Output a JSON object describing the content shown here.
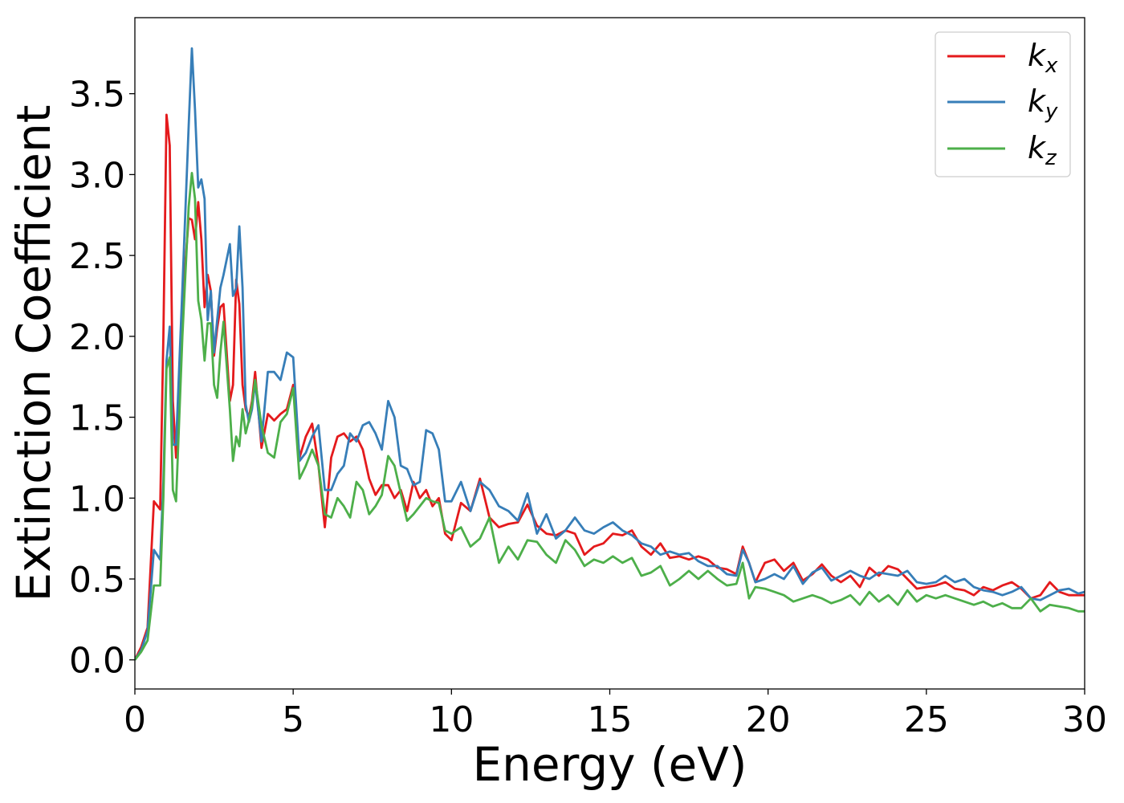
{
  "chart_data": {
    "type": "line",
    "title": "",
    "xlabel": "Energy (eV)",
    "ylabel": "Extinction Coefficient",
    "xlim": [
      0,
      30
    ],
    "ylim": [
      -0.18,
      3.97
    ],
    "xticks": [
      0,
      5,
      10,
      15,
      20,
      25,
      30
    ],
    "xtick_labels": [
      "0",
      "5",
      "10",
      "15",
      "20",
      "25",
      "30"
    ],
    "yticks": [
      0.0,
      0.5,
      1.0,
      1.5,
      2.0,
      2.5,
      3.0,
      3.5
    ],
    "ytick_labels": [
      "0.0",
      "0.5",
      "1.0",
      "1.5",
      "2.0",
      "2.5",
      "3.0",
      "3.5"
    ],
    "grid": false,
    "legend_position": "top-right",
    "x": [
      0,
      0.2,
      0.4,
      0.6,
      0.8,
      0.9,
      1.0,
      1.1,
      1.2,
      1.3,
      1.5,
      1.7,
      1.8,
      1.9,
      2.0,
      2.1,
      2.2,
      2.3,
      2.4,
      2.5,
      2.6,
      2.7,
      2.8,
      3.0,
      3.1,
      3.2,
      3.3,
      3.4,
      3.5,
      3.6,
      3.7,
      3.8,
      4.0,
      4.2,
      4.4,
      4.6,
      4.8,
      5.0,
      5.2,
      5.4,
      5.6,
      5.8,
      6.0,
      6.2,
      6.4,
      6.6,
      6.8,
      7.0,
      7.2,
      7.4,
      7.6,
      7.8,
      8.0,
      8.2,
      8.4,
      8.6,
      8.8,
      9.0,
      9.2,
      9.4,
      9.6,
      9.8,
      10.0,
      10.3,
      10.6,
      10.9,
      11.2,
      11.5,
      11.8,
      12.1,
      12.4,
      12.7,
      13.0,
      13.3,
      13.6,
      13.9,
      14.2,
      14.5,
      14.8,
      15.1,
      15.4,
      15.7,
      16.0,
      16.3,
      16.6,
      16.9,
      17.2,
      17.5,
      17.8,
      18.1,
      18.4,
      18.7,
      19.0,
      19.2,
      19.4,
      19.6,
      19.9,
      20.2,
      20.5,
      20.8,
      21.1,
      21.4,
      21.7,
      22.0,
      22.3,
      22.6,
      22.9,
      23.2,
      23.5,
      23.8,
      24.1,
      24.4,
      24.7,
      25.0,
      25.3,
      25.6,
      25.9,
      26.2,
      26.5,
      26.8,
      27.1,
      27.4,
      27.7,
      28.0,
      28.3,
      28.6,
      28.9,
      29.2,
      29.5,
      29.8,
      30.0
    ],
    "series": [
      {
        "name": "k_x",
        "color": "#e41a1c",
        "values": [
          0.0,
          0.08,
          0.2,
          0.98,
          0.93,
          2.0,
          3.37,
          3.18,
          1.6,
          1.25,
          2.2,
          2.73,
          2.72,
          2.6,
          2.83,
          2.6,
          2.18,
          2.38,
          2.28,
          1.88,
          2.05,
          2.18,
          2.2,
          1.6,
          1.7,
          2.35,
          2.2,
          1.7,
          1.55,
          1.5,
          1.6,
          1.78,
          1.31,
          1.52,
          1.48,
          1.52,
          1.55,
          1.7,
          1.25,
          1.38,
          1.46,
          1.2,
          0.82,
          1.25,
          1.38,
          1.4,
          1.35,
          1.38,
          1.3,
          1.12,
          1.02,
          1.08,
          1.08,
          1.0,
          1.05,
          0.92,
          1.1,
          1.0,
          1.05,
          0.95,
          1.0,
          0.78,
          0.74,
          0.97,
          0.92,
          1.12,
          0.88,
          0.82,
          0.84,
          0.85,
          0.96,
          0.83,
          0.78,
          0.77,
          0.8,
          0.78,
          0.65,
          0.7,
          0.72,
          0.78,
          0.77,
          0.8,
          0.7,
          0.65,
          0.72,
          0.63,
          0.64,
          0.62,
          0.64,
          0.62,
          0.57,
          0.56,
          0.53,
          0.7,
          0.6,
          0.48,
          0.6,
          0.62,
          0.55,
          0.6,
          0.49,
          0.53,
          0.59,
          0.52,
          0.48,
          0.52,
          0.45,
          0.57,
          0.52,
          0.58,
          0.56,
          0.5,
          0.44,
          0.45,
          0.46,
          0.48,
          0.44,
          0.43,
          0.4,
          0.45,
          0.43,
          0.46,
          0.48,
          0.44,
          0.38,
          0.4,
          0.48,
          0.42,
          0.4,
          0.4,
          0.4
        ]
      },
      {
        "name": "k_y",
        "color": "#377eb8",
        "values": [
          0.0,
          0.06,
          0.18,
          0.68,
          0.62,
          1.1,
          1.85,
          2.06,
          1.33,
          1.33,
          2.3,
          3.3,
          3.78,
          3.4,
          2.92,
          2.97,
          2.85,
          2.1,
          2.28,
          1.9,
          2.1,
          2.3,
          2.38,
          2.57,
          2.25,
          2.3,
          2.68,
          2.3,
          1.58,
          1.47,
          1.55,
          1.72,
          1.35,
          1.78,
          1.78,
          1.73,
          1.9,
          1.87,
          1.23,
          1.28,
          1.38,
          1.45,
          1.05,
          1.05,
          1.15,
          1.2,
          1.4,
          1.35,
          1.45,
          1.47,
          1.4,
          1.3,
          1.6,
          1.5,
          1.2,
          1.18,
          1.08,
          1.1,
          1.42,
          1.4,
          1.3,
          0.98,
          0.98,
          1.1,
          0.92,
          1.1,
          1.05,
          0.95,
          0.92,
          0.86,
          1.03,
          0.78,
          0.9,
          0.75,
          0.8,
          0.88,
          0.8,
          0.78,
          0.82,
          0.85,
          0.8,
          0.77,
          0.72,
          0.7,
          0.65,
          0.67,
          0.65,
          0.66,
          0.61,
          0.58,
          0.58,
          0.53,
          0.52,
          0.68,
          0.6,
          0.48,
          0.5,
          0.53,
          0.5,
          0.58,
          0.47,
          0.54,
          0.57,
          0.49,
          0.52,
          0.55,
          0.52,
          0.5,
          0.54,
          0.53,
          0.52,
          0.55,
          0.48,
          0.47,
          0.48,
          0.52,
          0.48,
          0.5,
          0.45,
          0.43,
          0.42,
          0.4,
          0.42,
          0.45,
          0.38,
          0.37,
          0.4,
          0.43,
          0.44,
          0.41,
          0.42
        ]
      },
      {
        "name": "k_z",
        "color": "#4daf4a",
        "values": [
          0.0,
          0.05,
          0.12,
          0.46,
          0.46,
          1.0,
          1.8,
          1.87,
          1.05,
          0.98,
          2.0,
          2.8,
          3.01,
          2.85,
          2.22,
          2.1,
          1.85,
          2.08,
          2.08,
          1.7,
          1.62,
          1.9,
          2.09,
          1.55,
          1.23,
          1.38,
          1.32,
          1.55,
          1.4,
          1.48,
          1.58,
          1.73,
          1.45,
          1.28,
          1.25,
          1.47,
          1.52,
          1.68,
          1.12,
          1.2,
          1.3,
          1.2,
          0.9,
          0.88,
          1.0,
          0.95,
          0.88,
          1.1,
          1.05,
          0.9,
          0.95,
          1.02,
          1.26,
          1.2,
          1.03,
          0.86,
          0.9,
          0.95,
          1.0,
          0.98,
          0.97,
          0.8,
          0.78,
          0.82,
          0.7,
          0.75,
          0.88,
          0.6,
          0.7,
          0.62,
          0.74,
          0.73,
          0.65,
          0.6,
          0.74,
          0.68,
          0.58,
          0.62,
          0.6,
          0.64,
          0.6,
          0.63,
          0.52,
          0.54,
          0.58,
          0.46,
          0.5,
          0.55,
          0.5,
          0.55,
          0.5,
          0.46,
          0.47,
          0.6,
          0.38,
          0.45,
          0.44,
          0.42,
          0.4,
          0.36,
          0.38,
          0.4,
          0.38,
          0.35,
          0.37,
          0.4,
          0.34,
          0.42,
          0.36,
          0.4,
          0.34,
          0.43,
          0.36,
          0.4,
          0.38,
          0.4,
          0.38,
          0.36,
          0.34,
          0.36,
          0.33,
          0.35,
          0.32,
          0.32,
          0.38,
          0.3,
          0.34,
          0.33,
          0.32,
          0.3,
          0.3
        ]
      }
    ],
    "legend": [
      {
        "base": "k",
        "sub": "x",
        "color": "#e41a1c"
      },
      {
        "base": "k",
        "sub": "y",
        "color": "#377eb8"
      },
      {
        "base": "k",
        "sub": "z",
        "color": "#4daf4a"
      }
    ]
  }
}
